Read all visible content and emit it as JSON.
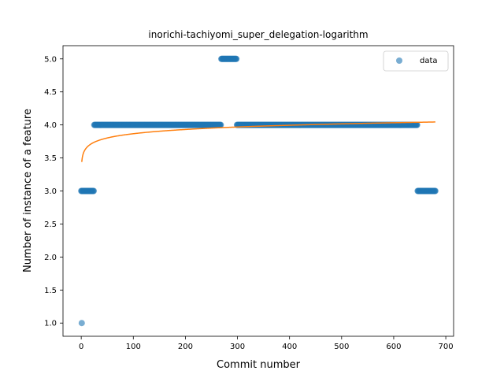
{
  "chart_data": {
    "type": "scatter",
    "title": "inorichi-tachiyomi_super_delegation-logarithm",
    "xlabel": "Commit number",
    "ylabel": "Number of instance of a feature",
    "xlim": [
      -35,
      715
    ],
    "ylim": [
      0.8,
      5.2
    ],
    "xticks": [
      0,
      100,
      200,
      300,
      400,
      500,
      600,
      700
    ],
    "yticks": [
      1.0,
      1.5,
      2.0,
      2.5,
      3.0,
      3.5,
      4.0,
      4.5,
      5.0
    ],
    "xtick_labels": [
      "0",
      "100",
      "200",
      "300",
      "400",
      "500",
      "600",
      "700"
    ],
    "ytick_labels": [
      "1.0",
      "1.5",
      "2.0",
      "2.5",
      "3.0",
      "3.5",
      "4.0",
      "4.5",
      "5.0"
    ],
    "grid": false,
    "legend": {
      "position": "top-right",
      "entries": [
        "data"
      ]
    },
    "series": [
      {
        "name": "data",
        "kind": "scatter",
        "color": "#1f77b4",
        "segments": [
          {
            "x_start": 1,
            "x_end": 1,
            "y": 1
          },
          {
            "x_start": 0,
            "x_end": 24,
            "y": 3
          },
          {
            "x_start": 25,
            "x_end": 268,
            "y": 4
          },
          {
            "x_start": 269,
            "x_end": 298,
            "y": 5
          },
          {
            "x_start": 299,
            "x_end": 645,
            "y": 4
          },
          {
            "x_start": 646,
            "x_end": 680,
            "y": 3
          }
        ]
      },
      {
        "name": "",
        "kind": "line",
        "color": "#ff7f0e",
        "fit": "logarithmic",
        "a": 3.44,
        "b": 0.0927,
        "x_range": [
          1,
          680
        ]
      }
    ]
  }
}
